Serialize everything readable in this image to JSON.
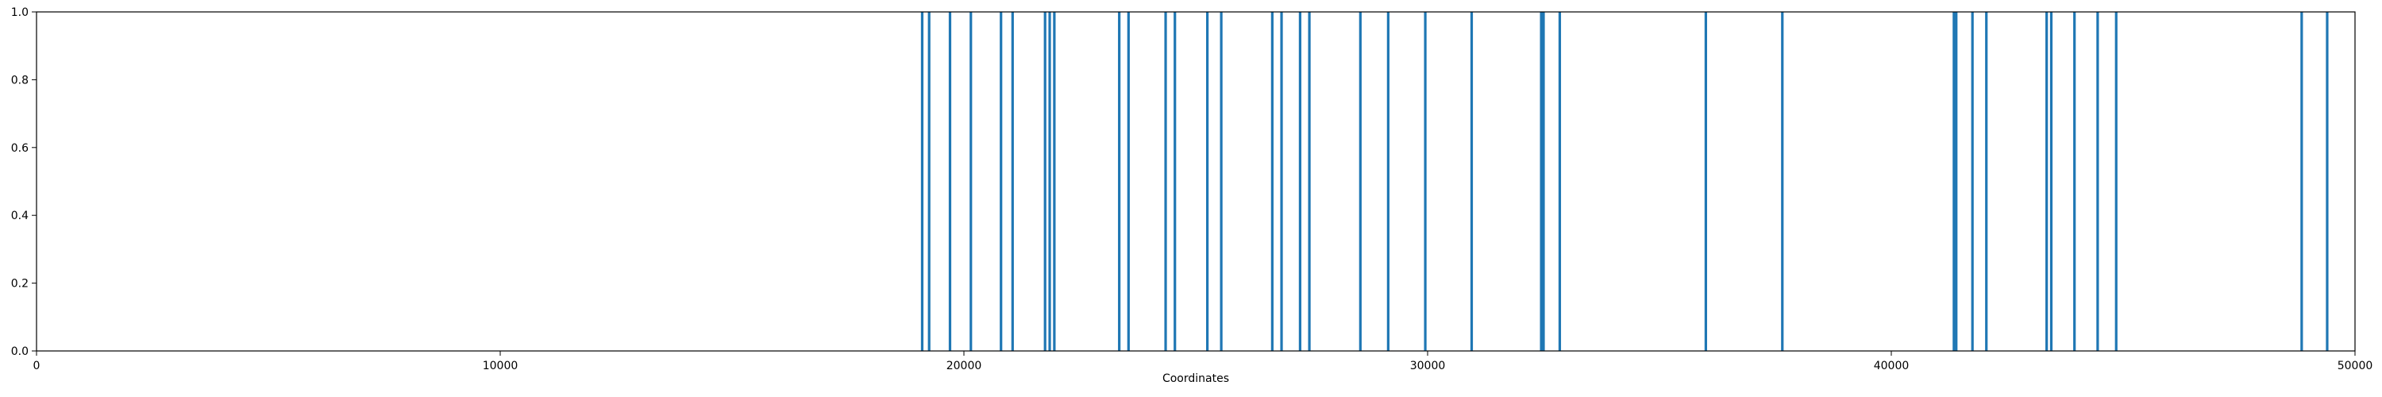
{
  "chart_data": {
    "type": "bar",
    "title": "",
    "xlabel": "Coordinates",
    "ylabel": "",
    "xlim": [
      0,
      50000
    ],
    "ylim": [
      0,
      1.0
    ],
    "x_ticks": [
      0,
      10000,
      20000,
      30000,
      40000,
      50000
    ],
    "x_tick_labels": [
      "0",
      "10000",
      "20000",
      "30000",
      "40000",
      "50000"
    ],
    "y_ticks": [
      0.0,
      0.2,
      0.4,
      0.6,
      0.8,
      1.0
    ],
    "y_tick_labels": [
      "0.0",
      "0.2",
      "0.4",
      "0.6",
      "0.8",
      "1.0"
    ],
    "grid": false,
    "legend": "none",
    "bar_color": "#1f77b4",
    "series": [
      {
        "x": [
          19100,
          19250,
          19700,
          20150,
          20800,
          21050,
          21750,
          21850,
          21950,
          23350,
          23550,
          24350,
          24550,
          25250,
          25550,
          26650,
          26850,
          27250,
          27450,
          28550,
          29150,
          29950,
          30950,
          32450,
          32500,
          32850,
          36000,
          37650,
          41350,
          41400,
          41750,
          42050,
          43350,
          43450,
          43950,
          44450,
          44850,
          48850,
          49400
        ],
        "values": [
          1.0,
          1.0,
          1.0,
          1.0,
          1.0,
          1.0,
          1.0,
          1.0,
          1.0,
          1.0,
          1.0,
          1.0,
          1.0,
          1.0,
          1.0,
          1.0,
          1.0,
          1.0,
          1.0,
          1.0,
          1.0,
          1.0,
          1.0,
          1.0,
          1.0,
          1.0,
          1.0,
          1.0,
          1.0,
          1.0,
          1.0,
          1.0,
          1.0,
          1.0,
          1.0,
          1.0,
          1.0,
          1.0,
          1.0
        ]
      }
    ]
  }
}
